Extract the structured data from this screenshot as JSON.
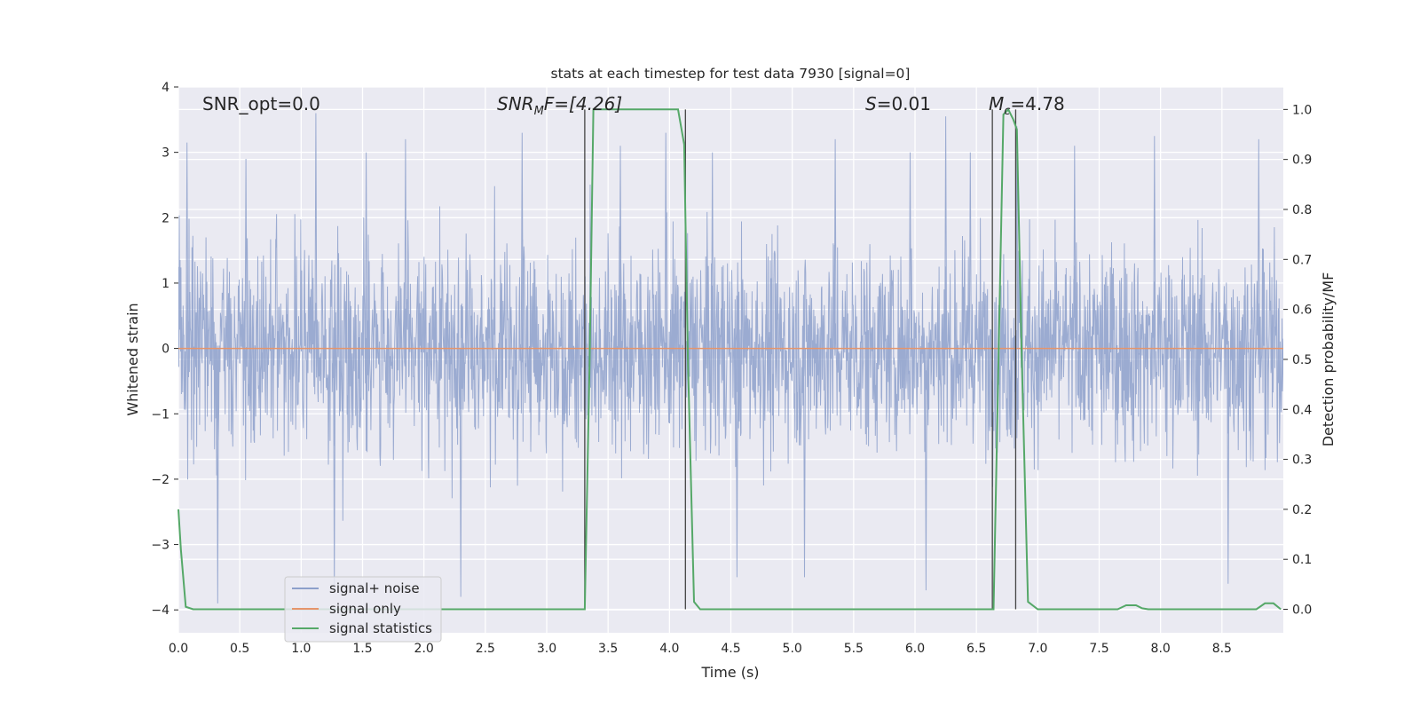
{
  "chart_data": {
    "type": "line",
    "title": "stats at each timestep for test data 7930 [signal=0]",
    "xlabel": "Time (s)",
    "ylabel": "Whitened strain",
    "y2label": "Detection probability/MF",
    "xlim": [
      0.0,
      9.0
    ],
    "ylim": [
      -4.35,
      4.0
    ],
    "y2lim": [
      -0.047,
      1.045
    ],
    "xticks": [
      "0.0",
      "0.5",
      "1.0",
      "1.5",
      "2.0",
      "2.5",
      "3.0",
      "3.5",
      "4.0",
      "4.5",
      "5.0",
      "5.5",
      "6.0",
      "6.5",
      "7.0",
      "7.5",
      "8.0",
      "8.5"
    ],
    "yticks": [
      "−4",
      "−3",
      "−2",
      "−1",
      "0",
      "1",
      "2",
      "3",
      "4"
    ],
    "y2ticks": [
      "0.0",
      "0.1",
      "0.2",
      "0.3",
      "0.4",
      "0.5",
      "0.6",
      "0.7",
      "0.8",
      "0.9",
      "1.0"
    ],
    "grid": true,
    "legend_position": "lower-left",
    "annotations": {
      "snr_opt": "SNR_opt=0.0",
      "snr_mf_base": "SNR",
      "snr_mf_sub": "M",
      "snr_mf_rest": "F=[4.26]",
      "s_label": "S",
      "s_value": "=0.01",
      "mc_base": "M",
      "mc_sub": "c",
      "mc_value": "=4.78"
    },
    "vertical_markers": [
      3.31,
      4.13,
      6.63,
      6.82
    ],
    "series": [
      {
        "name": "signal+ noise",
        "color": "#8da0cb",
        "axis": "left",
        "description_range": [
          -3.9,
          3.6
        ],
        "peaks": [
          [
            0.07,
            3.15
          ],
          [
            0.32,
            -3.9
          ],
          [
            0.55,
            2.9
          ],
          [
            1.12,
            3.6
          ],
          [
            1.27,
            -3.7
          ],
          [
            1.53,
            3.0
          ],
          [
            1.85,
            3.2
          ],
          [
            2.3,
            -3.8
          ],
          [
            2.8,
            3.3
          ],
          [
            3.6,
            3.1
          ],
          [
            3.97,
            3.3
          ],
          [
            4.35,
            3.0
          ],
          [
            4.55,
            -3.5
          ],
          [
            5.1,
            -3.5
          ],
          [
            5.35,
            3.2
          ],
          [
            5.96,
            3.0
          ],
          [
            6.09,
            -3.7
          ],
          [
            6.25,
            3.55
          ],
          [
            6.45,
            3.0
          ],
          [
            6.83,
            3.4
          ],
          [
            7.3,
            3.1
          ],
          [
            7.95,
            3.25
          ],
          [
            8.55,
            -3.6
          ],
          [
            8.8,
            3.2
          ]
        ]
      },
      {
        "name": "signal only",
        "color": "#e5956b",
        "axis": "left",
        "x": [
          0.0,
          9.0
        ],
        "y": [
          0.0,
          0.0
        ]
      },
      {
        "name": "signal statistics",
        "color": "#55a868",
        "axis": "right",
        "x": [
          0.0,
          0.02,
          0.06,
          0.12,
          0.3,
          1.0,
          2.0,
          3.0,
          3.27,
          3.31,
          3.35,
          3.38,
          3.45,
          3.6,
          4.0,
          4.07,
          4.12,
          4.15,
          4.2,
          4.25,
          4.35,
          5.0,
          6.0,
          6.6,
          6.64,
          6.68,
          6.72,
          6.76,
          6.8,
          6.83,
          6.87,
          6.92,
          7.0,
          7.5,
          7.65,
          7.72,
          7.8,
          7.85,
          7.9,
          8.0,
          8.5,
          8.78,
          8.85,
          8.92,
          8.98
        ],
        "y": [
          0.2,
          0.12,
          0.005,
          0.0,
          0.0,
          0.0,
          0.0,
          0.0,
          0.0,
          0.0,
          0.5,
          1.0,
          1.0,
          1.0,
          1.0,
          1.0,
          0.93,
          0.5,
          0.015,
          0.0,
          0.0,
          0.0,
          0.0,
          0.0,
          0.0,
          0.5,
          0.99,
          1.0,
          0.98,
          0.96,
          0.5,
          0.015,
          0.0,
          0.0,
          0.0,
          0.008,
          0.008,
          0.002,
          0.0,
          0.0,
          0.0,
          0.0,
          0.012,
          0.012,
          0.0
        ]
      }
    ]
  }
}
